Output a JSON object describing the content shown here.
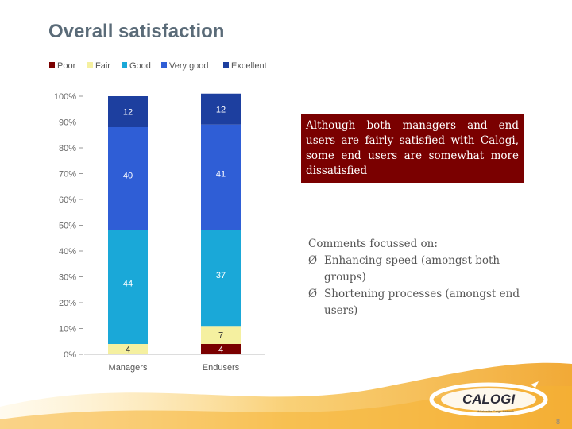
{
  "title": "Overall satisfaction",
  "callout": "Although both managers and end users are fairly satisfied with Calogi, some end users are somewhat more dissatisfied",
  "comments": {
    "heading": "Comments focussed on:",
    "bullet_symbol": "Ø",
    "bullets": [
      "Enhancing speed (amongst both groups)",
      "Shortening processes (amongst end users)"
    ]
  },
  "logo": {
    "name": "CALOGI",
    "tagline": "Worldwide Cargo Network"
  },
  "page_number": "8",
  "chart_data": {
    "type": "bar",
    "stacked": true,
    "categories": [
      "Managers",
      "Endusers"
    ],
    "series": [
      {
        "name": "Poor",
        "color": "#7a0000",
        "values": [
          0,
          4
        ],
        "labels": [
          "",
          "4"
        ]
      },
      {
        "name": "Fair",
        "color": "#f5f0a0",
        "values": [
          4,
          7
        ],
        "labels": [
          "4",
          "7"
        ]
      },
      {
        "name": "Good",
        "color": "#1aa8d8",
        "values": [
          44,
          37
        ],
        "labels": [
          "44",
          "37"
        ]
      },
      {
        "name": "Very good",
        "color": "#2f5ed6",
        "values": [
          40,
          41
        ],
        "labels": [
          "40",
          "41"
        ]
      },
      {
        "name": "Excellent",
        "color": "#1d3f9f",
        "values": [
          12,
          12
        ],
        "labels": [
          "12",
          "12"
        ]
      }
    ],
    "yticks": [
      "0%",
      "10%",
      "20%",
      "30%",
      "40%",
      "50%",
      "60%",
      "70%",
      "80%",
      "90%",
      "100%"
    ],
    "ylim": [
      0,
      100
    ],
    "legend_position": "top"
  }
}
